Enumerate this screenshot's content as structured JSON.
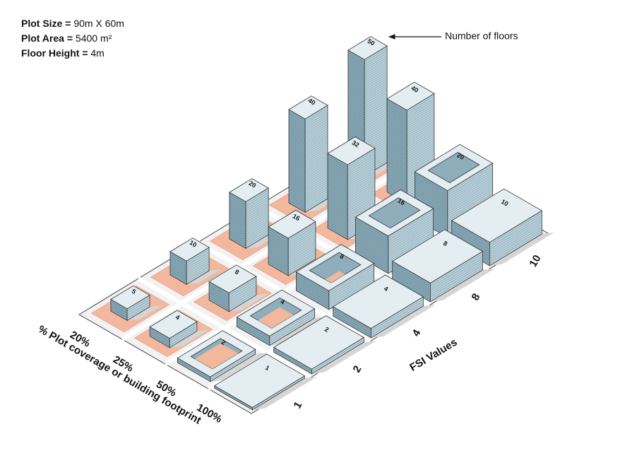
{
  "info": [
    {
      "label": "Plot Size =",
      "value": "90m X 60m"
    },
    {
      "label": "Plot Area =",
      "value": "5400 m²"
    },
    {
      "label": "Floor Height =",
      "value": "4m"
    }
  ],
  "annotation": "Number of floors",
  "coverage_axis": {
    "title": "% Plot coverage or building footprint",
    "labels": [
      "20%",
      "25%",
      "50%",
      "100%"
    ]
  },
  "fsi_axis": {
    "title": "FSI Values",
    "labels": [
      "1",
      "2",
      "4",
      "8",
      "10"
    ]
  },
  "floors": [
    [
      5,
      10,
      20,
      40,
      50
    ],
    [
      4,
      8,
      16,
      32,
      40
    ],
    [
      2,
      4,
      8,
      16,
      20
    ],
    [
      1,
      2,
      4,
      8,
      10
    ]
  ]
}
